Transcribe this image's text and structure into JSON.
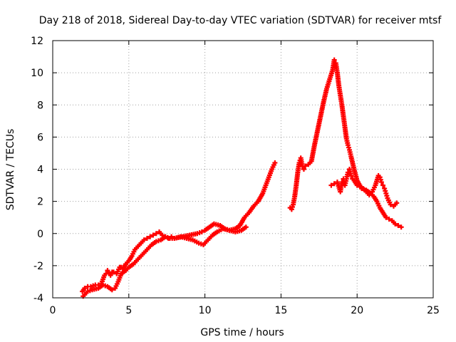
{
  "chart_data": {
    "type": "scatter",
    "title": "Day 218 of 2018, Sidereal Day-to-day VTEC variation (SDTVAR) for receiver mtsf",
    "xlabel": "GPS time / hours",
    "ylabel": "SDTVAR / TECUs",
    "xlim": [
      0,
      25
    ],
    "ylim": [
      -4,
      12
    ],
    "xticks": [
      0,
      5,
      10,
      15,
      20,
      25
    ],
    "yticks": [
      -4,
      -2,
      0,
      2,
      4,
      6,
      8,
      10,
      12
    ],
    "grid": true,
    "legend": "none",
    "marker": "+",
    "color": "#ff0000",
    "series": [
      {
        "name": "segment-1",
        "x": [
          1.95,
          2.1,
          2.3,
          2.5,
          2.8,
          3.0,
          3.2,
          3.4,
          3.5,
          3.6,
          3.7,
          3.8,
          3.9,
          4.0,
          4.2,
          4.4,
          4.5,
          4.6,
          4.8,
          5.0,
          5.2,
          5.4,
          5.6,
          5.8,
          6.0,
          6.2,
          6.4,
          6.6,
          6.8,
          7.0,
          7.2,
          7.4,
          7.6,
          7.8,
          8.0,
          8.5,
          9.0,
          9.5,
          9.8,
          10.0,
          10.3,
          10.6,
          11.0,
          11.3,
          11.6,
          12.0,
          12.3,
          12.6,
          12.9,
          13.2,
          13.5,
          13.8,
          14.0,
          14.2,
          14.4,
          14.6
        ],
        "y": [
          -3.6,
          -3.4,
          -3.3,
          -3.3,
          -3.2,
          -3.2,
          -3.1,
          -2.6,
          -2.5,
          -2.3,
          -2.5,
          -2.6,
          -2.4,
          -2.4,
          -2.5,
          -2.1,
          -2.1,
          -2.2,
          -1.9,
          -1.7,
          -1.4,
          -1.0,
          -0.8,
          -0.6,
          -0.4,
          -0.3,
          -0.2,
          -0.1,
          0.0,
          0.1,
          -0.1,
          -0.2,
          -0.3,
          -0.2,
          -0.3,
          -0.2,
          -0.1,
          0.0,
          0.1,
          0.2,
          0.4,
          0.6,
          0.5,
          0.3,
          0.2,
          0.3,
          0.5,
          1.0,
          1.3,
          1.7,
          2.0,
          2.5,
          3.0,
          3.5,
          4.0,
          4.4
        ]
      },
      {
        "name": "segment-2",
        "x": [
          2.0,
          2.3,
          2.6,
          3.0,
          3.3,
          3.6,
          3.9,
          4.1,
          4.3,
          4.5,
          4.8,
          5.0,
          5.3,
          5.6,
          5.9,
          6.2,
          6.5,
          6.8,
          7.1,
          7.4,
          7.7,
          8.0,
          8.4,
          8.8,
          9.2,
          9.6,
          9.9,
          10.2,
          10.5,
          10.8,
          11.2,
          11.6,
          12.0,
          12.4,
          12.7
        ],
        "y": [
          -3.9,
          -3.6,
          -3.5,
          -3.4,
          -3.2,
          -3.3,
          -3.5,
          -3.4,
          -3.0,
          -2.5,
          -2.3,
          -2.1,
          -1.9,
          -1.6,
          -1.3,
          -1.0,
          -0.7,
          -0.5,
          -0.4,
          -0.2,
          -0.3,
          -0.3,
          -0.2,
          -0.3,
          -0.4,
          -0.6,
          -0.7,
          -0.4,
          -0.1,
          0.1,
          0.3,
          0.2,
          0.1,
          0.2,
          0.4
        ]
      },
      {
        "name": "segment-3",
        "x": [
          15.6,
          15.7,
          15.8,
          15.9,
          16.0,
          16.1,
          16.2,
          16.3,
          16.4,
          16.5,
          16.6,
          16.8,
          17.0,
          17.2,
          17.4,
          17.6,
          17.8,
          18.0,
          18.2,
          18.4,
          18.5,
          18.6,
          18.7,
          18.8,
          18.9,
          19.0,
          19.1,
          19.2,
          19.3,
          19.4,
          19.5,
          19.6,
          19.8,
          20.0,
          20.3,
          20.6,
          20.9,
          21.1,
          21.3,
          21.5,
          21.7,
          21.9,
          22.1,
          22.3,
          22.5,
          22.7,
          22.9
        ],
        "y": [
          1.6,
          1.5,
          1.8,
          2.3,
          3.0,
          3.8,
          4.4,
          4.7,
          4.2,
          4.0,
          4.2,
          4.3,
          4.5,
          5.5,
          6.4,
          7.3,
          8.2,
          9.0,
          9.6,
          10.2,
          10.8,
          10.6,
          10.0,
          9.2,
          8.6,
          8.0,
          7.3,
          6.6,
          5.9,
          5.5,
          5.2,
          4.8,
          4.0,
          3.3,
          2.8,
          2.7,
          2.5,
          2.3,
          2.0,
          1.6,
          1.3,
          1.0,
          0.9,
          0.8,
          0.6,
          0.5,
          0.4
        ]
      },
      {
        "name": "segment-4",
        "x": [
          18.3,
          18.5,
          18.7,
          18.9,
          19.0,
          19.1,
          19.2,
          19.3,
          19.4,
          19.5,
          19.6,
          19.7,
          19.8,
          20.0,
          20.2,
          20.4,
          20.6,
          20.8,
          21.0,
          21.2,
          21.4,
          21.5,
          21.6,
          21.7,
          21.8,
          21.9,
          22.0,
          22.2,
          22.4,
          22.6
        ],
        "y": [
          3.0,
          3.1,
          3.2,
          2.6,
          3.2,
          3.4,
          3.0,
          3.4,
          3.8,
          4.0,
          3.6,
          3.4,
          3.3,
          3.0,
          2.9,
          2.8,
          2.6,
          2.4,
          2.6,
          3.0,
          3.6,
          3.5,
          3.2,
          3.0,
          2.8,
          2.5,
          2.2,
          1.8,
          1.7,
          1.9
        ]
      }
    ]
  }
}
